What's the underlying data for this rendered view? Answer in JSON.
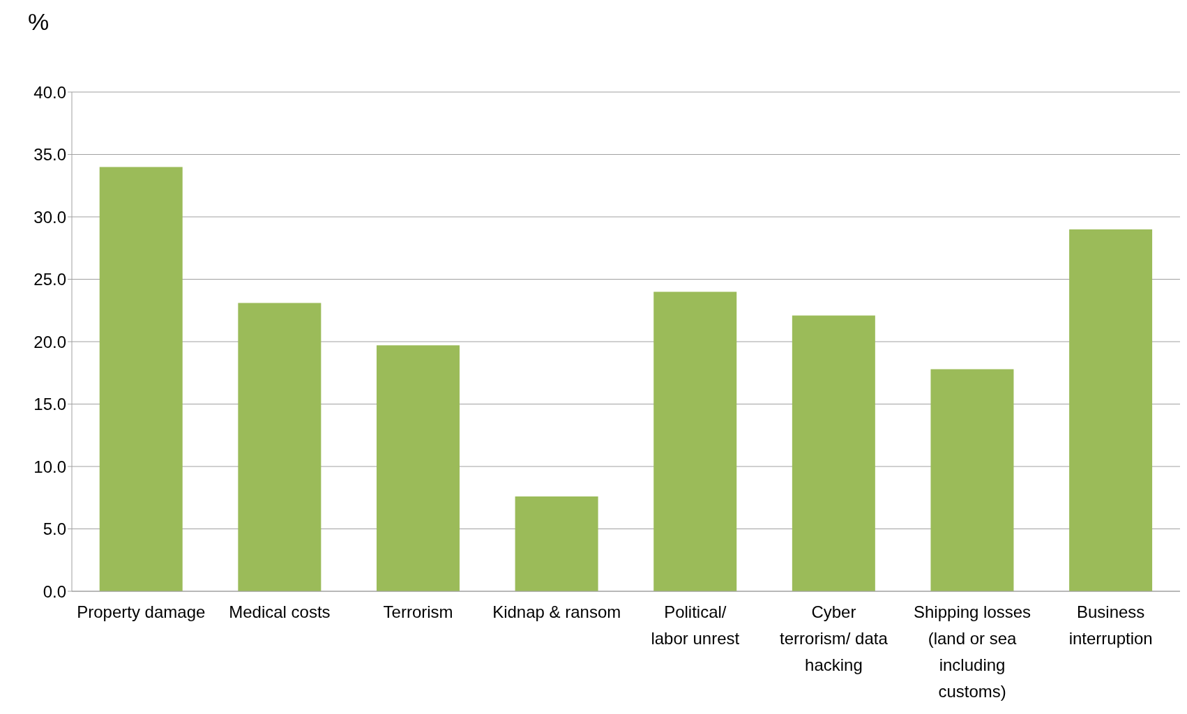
{
  "chart_data": {
    "type": "bar",
    "ylabel": "%",
    "categories": [
      "Property damage",
      "Medical costs",
      "Terrorism",
      "Kidnap & ransom",
      "Political/ labor unrest",
      "Cyber terrorism/ data hacking",
      "Shipping losses (land or sea including customs)",
      "Business interruption"
    ],
    "values": [
      34.0,
      23.1,
      19.7,
      7.6,
      24.0,
      22.1,
      17.8,
      29.0
    ],
    "color": "#9bbb59",
    "ylim": [
      0,
      40
    ],
    "yticks": [
      {
        "value": 0,
        "label": "0.0"
      },
      {
        "value": 5,
        "label": "5.0"
      },
      {
        "value": 10,
        "label": "10.0"
      },
      {
        "value": 15,
        "label": "15.0"
      },
      {
        "value": 20,
        "label": "20.0"
      },
      {
        "value": 25,
        "label": "25.0"
      },
      {
        "value": 30,
        "label": "30.0"
      },
      {
        "value": 35,
        "label": "35.0"
      },
      {
        "value": 40,
        "label": "40.0"
      }
    ],
    "grid": "y"
  }
}
